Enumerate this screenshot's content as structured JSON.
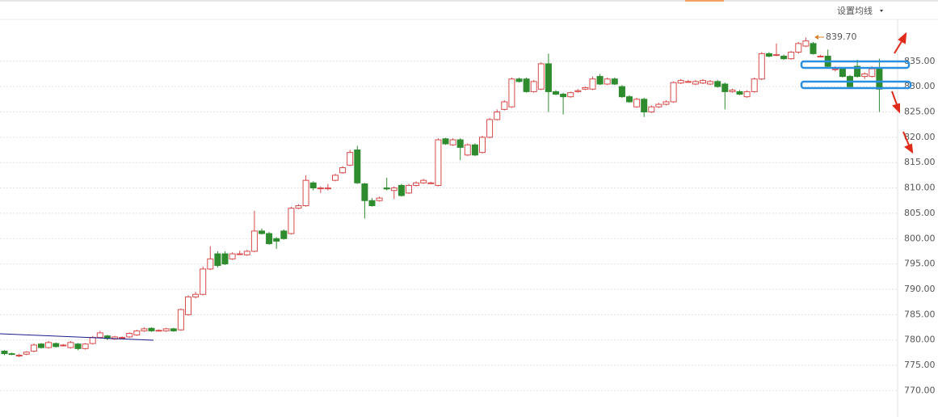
{
  "chart_data": {
    "type": "candlestick",
    "menu_label": "设置均线",
    "max_label": "839.70",
    "up_color": "#d84a4a",
    "down_color": "#2e8b2e",
    "ylim": [
      764.8,
      843.1
    ],
    "yticks": [
      {
        "value": 770,
        "label": "770.00"
      },
      {
        "value": 775,
        "label": "775.00"
      },
      {
        "value": 780,
        "label": "780.00"
      },
      {
        "value": 785,
        "label": "785.00"
      },
      {
        "value": 790,
        "label": "790.00"
      },
      {
        "value": 795,
        "label": "795.00"
      },
      {
        "value": 800,
        "label": "800.00"
      },
      {
        "value": 805,
        "label": "805.00"
      },
      {
        "value": 810,
        "label": "810.00"
      },
      {
        "value": 815,
        "label": "815.00"
      },
      {
        "value": 820,
        "label": "820.00"
      },
      {
        "value": 825,
        "label": "825.00"
      },
      {
        "value": 830,
        "label": "830.00"
      },
      {
        "value": 835,
        "label": "835.00"
      }
    ],
    "grid": true,
    "ohlc": [
      [
        777.8,
        778,
        777,
        777.3
      ],
      [
        777.3,
        777.5,
        777,
        777.2
      ],
      [
        777,
        777.3,
        776.6,
        777
      ],
      [
        777.2,
        777.8,
        777,
        777.6
      ],
      [
        777.8,
        779.3,
        777.6,
        779
      ],
      [
        779.2,
        779.4,
        778.3,
        778.5
      ],
      [
        778.5,
        779.8,
        778.3,
        779.5
      ],
      [
        779.3,
        779.5,
        778.5,
        778.7
      ],
      [
        779,
        779.2,
        778.7,
        779
      ],
      [
        778.5,
        779.8,
        778.3,
        779.5
      ],
      [
        779.2,
        779.4,
        778,
        778.3
      ],
      [
        778.3,
        779.4,
        778.1,
        779.2
      ],
      [
        779.3,
        780.8,
        779.1,
        780.5
      ],
      [
        780.5,
        781.8,
        780.3,
        781.4
      ],
      [
        780.8,
        781,
        780,
        780.3
      ],
      [
        780.2,
        780.8,
        780,
        780.6
      ],
      [
        780.5,
        780.7,
        780.2,
        780.5
      ],
      [
        780.6,
        781.5,
        780.4,
        781.3
      ],
      [
        781,
        782,
        780.8,
        781.8
      ],
      [
        781.8,
        782.5,
        781.6,
        782.2
      ],
      [
        782.3,
        782.5,
        781.6,
        781.8
      ],
      [
        781.9,
        782.1,
        781.7,
        781.9
      ],
      [
        781.8,
        782.4,
        781.6,
        782.2
      ],
      [
        782.2,
        782.4,
        781.6,
        781.8
      ],
      [
        782,
        786.2,
        781.8,
        786
      ],
      [
        785,
        788.8,
        784.8,
        788.5
      ],
      [
        788.5,
        789.5,
        788.2,
        789
      ],
      [
        789,
        794.5,
        788.8,
        794
      ],
      [
        794,
        798.5,
        793.8,
        796
      ],
      [
        797,
        797.5,
        794.3,
        794.7
      ],
      [
        797,
        797.5,
        794.8,
        795
      ],
      [
        796,
        797.3,
        795.8,
        797
      ],
      [
        797,
        797.6,
        796.8,
        797
      ],
      [
        796.8,
        797.8,
        796.6,
        797.5
      ],
      [
        797.5,
        805.5,
        797.3,
        801.5
      ],
      [
        801.5,
        802,
        800.8,
        801
      ],
      [
        801,
        801.3,
        798.8,
        799
      ],
      [
        800,
        800.3,
        798,
        799.5
      ],
      [
        801.5,
        801.8,
        799.8,
        800
      ],
      [
        801,
        806.3,
        800.8,
        806
      ],
      [
        806,
        806.8,
        805.8,
        806.5
      ],
      [
        806.5,
        812.5,
        806.3,
        811.5
      ],
      [
        811,
        811.3,
        809.5,
        810
      ],
      [
        810,
        810.3,
        809,
        810
      ],
      [
        810,
        810.8,
        809.5,
        810
      ],
      [
        811.5,
        812.8,
        811.3,
        812.5
      ],
      [
        813,
        814.3,
        812.8,
        814
      ],
      [
        814.5,
        817.5,
        814.3,
        817
      ],
      [
        817.5,
        818.3,
        810.8,
        811
      ],
      [
        810.8,
        811,
        804,
        807.5
      ],
      [
        807.5,
        808,
        806.3,
        806.5
      ],
      [
        807.5,
        808.3,
        807.3,
        808
      ],
      [
        810,
        812,
        809.5,
        809.8
      ],
      [
        809.5,
        810.3,
        807.8,
        810
      ],
      [
        810.5,
        810.8,
        808.3,
        808.5
      ],
      [
        809,
        810.8,
        808.8,
        810.5
      ],
      [
        810.5,
        811.3,
        810.3,
        811
      ],
      [
        811,
        811.8,
        810.8,
        811.5
      ],
      [
        811,
        811.2,
        810.8,
        811
      ],
      [
        810.5,
        819.8,
        810.3,
        819.5
      ],
      [
        819.7,
        819.9,
        818.5,
        818.7
      ],
      [
        818.5,
        819.8,
        818.3,
        819.5
      ],
      [
        819.5,
        819.8,
        815.5,
        818
      ],
      [
        816.5,
        818.8,
        816.3,
        818.5
      ],
      [
        818.5,
        818.8,
        816.3,
        816.5
      ],
      [
        817,
        820.3,
        816.8,
        820
      ],
      [
        820,
        823.8,
        819.8,
        823.5
      ],
      [
        823.5,
        825.5,
        823.3,
        825
      ],
      [
        825.5,
        827.3,
        825.3,
        827
      ],
      [
        826,
        831.8,
        825.8,
        831.5
      ],
      [
        831.5,
        831.8,
        830.8,
        831
      ],
      [
        831.5,
        831.8,
        828.8,
        829
      ],
      [
        829,
        831.3,
        828.8,
        831
      ],
      [
        829.5,
        834.8,
        829.3,
        834.5
      ],
      [
        834.5,
        836.5,
        825,
        829
      ],
      [
        829,
        829.3,
        828.3,
        828.5
      ],
      [
        828.5,
        828.8,
        824.5,
        828
      ],
      [
        828,
        829,
        827.8,
        828.8
      ],
      [
        829,
        829.5,
        828.8,
        829.2
      ],
      [
        829.5,
        830,
        829.3,
        829.8
      ],
      [
        829.5,
        832,
        829.3,
        831.5
      ],
      [
        832,
        832.5,
        830.3,
        830.5
      ],
      [
        830.5,
        831.8,
        830.3,
        831.5
      ],
      [
        831.5,
        831.8,
        830.3,
        830.5
      ],
      [
        830,
        830.3,
        827.8,
        828
      ],
      [
        828,
        828.3,
        826.8,
        827
      ],
      [
        826,
        827.8,
        825.8,
        827.5
      ],
      [
        827.5,
        827.8,
        824,
        825
      ],
      [
        825,
        826.3,
        824.8,
        826
      ],
      [
        826,
        826.8,
        825.8,
        826.5
      ],
      [
        826.5,
        827.3,
        826.3,
        827
      ],
      [
        827,
        831,
        826.8,
        830.8
      ],
      [
        830.7,
        831.5,
        830.5,
        831.2
      ],
      [
        831,
        831.3,
        830.8,
        831
      ],
      [
        830.5,
        831.3,
        830.3,
        831
      ],
      [
        830.7,
        831.5,
        830.5,
        831.2
      ],
      [
        830.5,
        831.3,
        830.3,
        831
      ],
      [
        831,
        831.3,
        829.8,
        830
      ],
      [
        830.5,
        830.8,
        825.5,
        829
      ],
      [
        829,
        829.6,
        828.8,
        829.3
      ],
      [
        829,
        829.3,
        828.3,
        828.5
      ],
      [
        828,
        829.3,
        827.8,
        829
      ],
      [
        829,
        831.8,
        828.8,
        831.5
      ],
      [
        831.5,
        836.8,
        831.3,
        836.5
      ],
      [
        836.5,
        836.8,
        835.8,
        836
      ],
      [
        836.3,
        838.5,
        836,
        836.3
      ],
      [
        836,
        836.3,
        835.3,
        835.5
      ],
      [
        835.5,
        837,
        835.3,
        836.8
      ],
      [
        836.8,
        838.8,
        836.5,
        838.5
      ],
      [
        838,
        839.7,
        837.8,
        839
      ],
      [
        838.5,
        838.8,
        836.3,
        836.5
      ],
      [
        836,
        836.3,
        835.8,
        836
      ],
      [
        836,
        837.3,
        833.8,
        834
      ],
      [
        833.5,
        834,
        833,
        833.5
      ],
      [
        833.5,
        833.8,
        831.8,
        832
      ],
      [
        832,
        832.3,
        829.8,
        830
      ],
      [
        834,
        835.3,
        831.8,
        832
      ],
      [
        832,
        832.8,
        831.5,
        832.5
      ],
      [
        832,
        834,
        831.8,
        833.5
      ],
      [
        833.5,
        835.5,
        825,
        829.5
      ]
    ]
  }
}
